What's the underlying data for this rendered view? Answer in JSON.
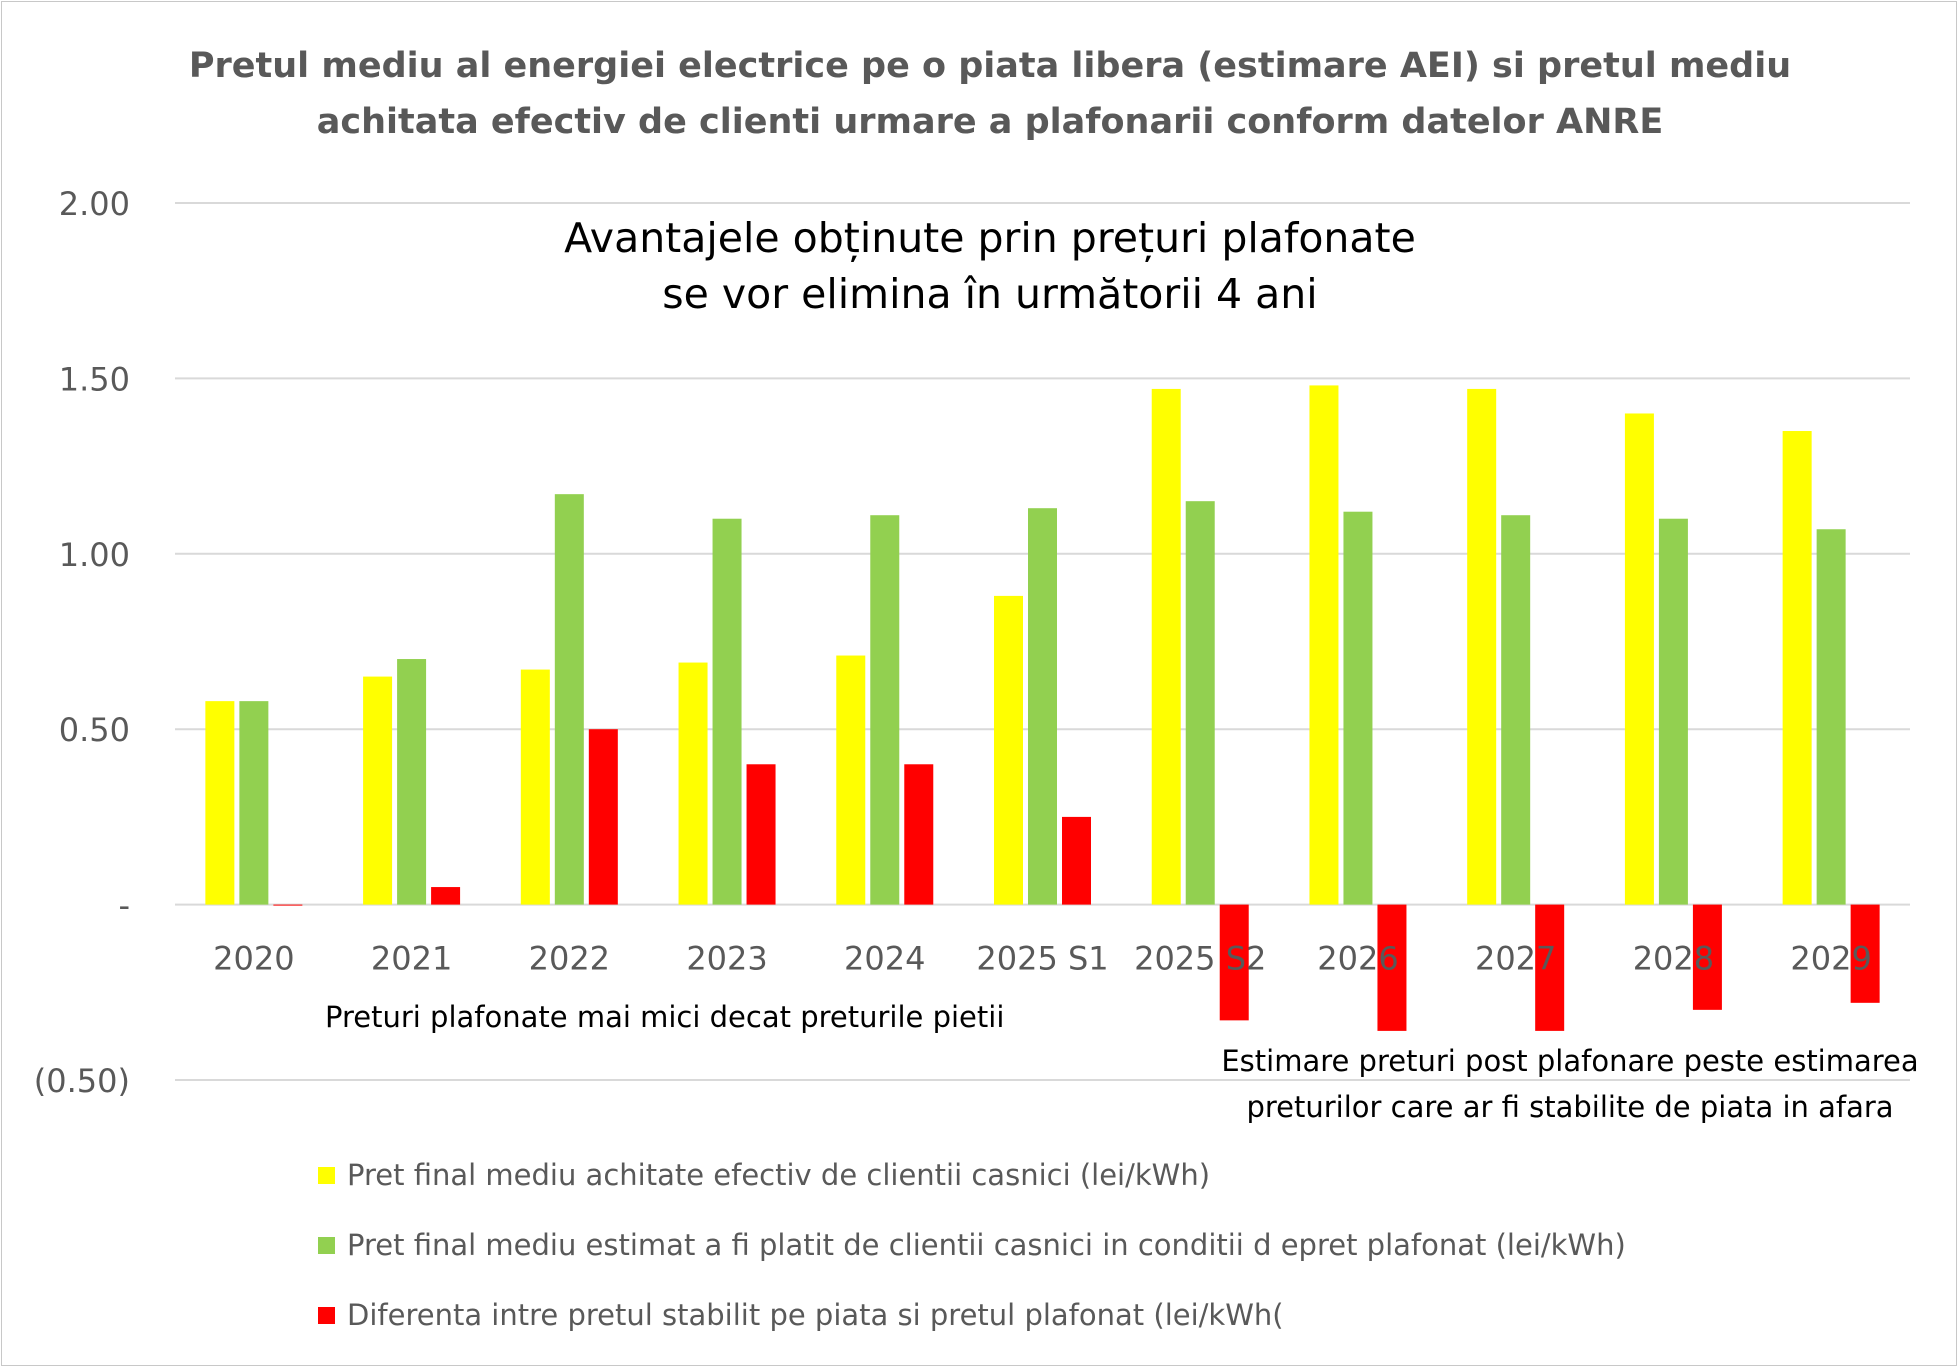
{
  "chart_data": {
    "type": "bar",
    "title": "Pretul mediu al energiei electrice pe o piata libera (estimare AEI) si pretul mediu achitata efectiv de clienti urmare a plafonarii conform datelor ANRE",
    "subtitle": "Avantajele obținute prin prețuri plafonate se vor elimina în următorii 4 ani",
    "categories": [
      "2020",
      "2021",
      "2022",
      "2023",
      "2024",
      "2025 S1",
      "2025 S2",
      "2026",
      "2027",
      "2028",
      "2029"
    ],
    "series": [
      {
        "name": "Pret final mediu achitate efectiv de clientii casnici (lei/kWh)",
        "color": "#ffff00",
        "values": [
          0.58,
          0.65,
          0.67,
          0.69,
          0.71,
          0.88,
          1.47,
          1.48,
          1.47,
          1.4,
          1.35
        ]
      },
      {
        "name": "Pret final mediu estimat a fi platit de clientii casnici in conditii d epret plafonat (lei/kWh)",
        "color": "#92d050",
        "values": [
          0.58,
          0.7,
          1.17,
          1.1,
          1.11,
          1.13,
          1.15,
          1.12,
          1.11,
          1.1,
          1.07
        ]
      },
      {
        "name": "Diferenta intre pretul stabilit pe piata si pretul plafonat (lei/kWh(",
        "color": "#ff0000",
        "values": [
          0.0,
          0.05,
          0.5,
          0.4,
          0.4,
          0.25,
          -0.33,
          -0.36,
          -0.36,
          -0.3,
          -0.28
        ]
      }
    ],
    "y_ticks": [
      -0.5,
      0,
      0.5,
      1.0,
      1.5,
      2.0
    ],
    "y_tick_labels": [
      "(0.50)",
      "-",
      "0.50",
      "1.00",
      "1.50",
      "2.00"
    ],
    "ylim": [
      -0.5,
      2.0
    ],
    "grid": true,
    "legend_position": "bottom-left",
    "annotations": [
      "Preturi plafonate mai mici decat preturile pietii",
      "Estimare preturi post plafonare peste estimarea preturilor care ar fi stabilite de piata in afara"
    ]
  }
}
